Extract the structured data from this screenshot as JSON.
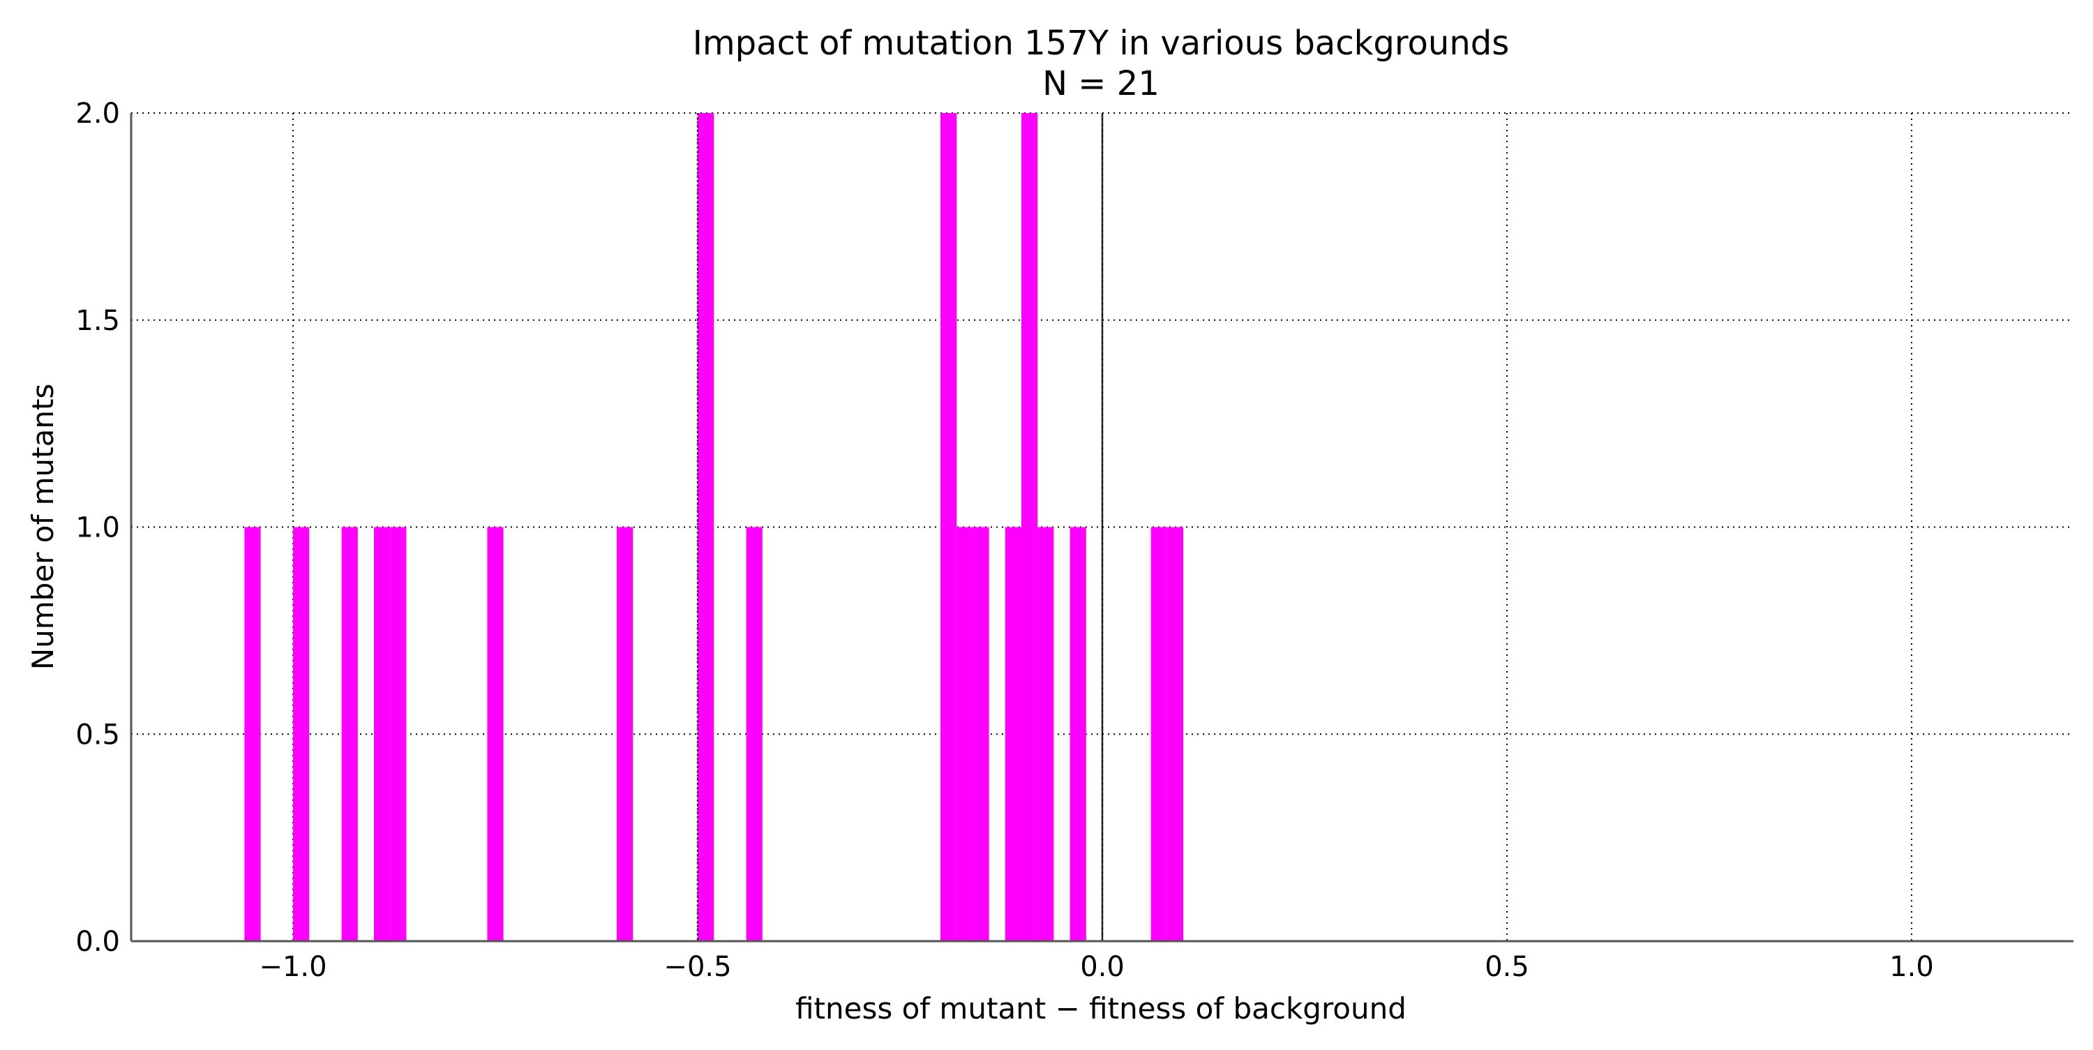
{
  "chart_data": {
    "type": "bar",
    "title": "Impact of mutation 157Y in various backgrounds",
    "subtitle": "N = 21",
    "xlabel": "fitness of mutant  −  fitness of background",
    "ylabel": "Number of mutants",
    "xlim": [
      -1.2,
      1.2
    ],
    "ylim": [
      0,
      2.0
    ],
    "xticks": [
      -1.0,
      -0.5,
      0.0,
      0.5,
      1.0
    ],
    "xtick_labels": [
      "−1.0",
      "−0.5",
      "0.0",
      "0.5",
      "1.0"
    ],
    "yticks": [
      0.0,
      0.5,
      1.0,
      1.5,
      2.0
    ],
    "ytick_labels": [
      "0.0",
      "0.5",
      "1.0",
      "1.5",
      "2.0"
    ],
    "grid": true,
    "vertical_reference_lines": [
      -0.5,
      0.0
    ],
    "bar_color": "#ff00ff",
    "bin_width": 0.02,
    "bins": [
      {
        "x_start": -1.06,
        "count": 1
      },
      {
        "x_start": -1.0,
        "count": 1
      },
      {
        "x_start": -0.94,
        "count": 1
      },
      {
        "x_start": -0.9,
        "count": 1
      },
      {
        "x_start": -0.88,
        "count": 1
      },
      {
        "x_start": -0.76,
        "count": 1
      },
      {
        "x_start": -0.6,
        "count": 1
      },
      {
        "x_start": -0.5,
        "count": 2
      },
      {
        "x_start": -0.44,
        "count": 1
      },
      {
        "x_start": -0.2,
        "count": 2
      },
      {
        "x_start": -0.18,
        "count": 1
      },
      {
        "x_start": -0.16,
        "count": 1
      },
      {
        "x_start": -0.12,
        "count": 1
      },
      {
        "x_start": -0.1,
        "count": 2
      },
      {
        "x_start": -0.08,
        "count": 1
      },
      {
        "x_start": -0.04,
        "count": 1
      },
      {
        "x_start": 0.06,
        "count": 1
      },
      {
        "x_start": 0.08,
        "count": 1
      }
    ]
  }
}
